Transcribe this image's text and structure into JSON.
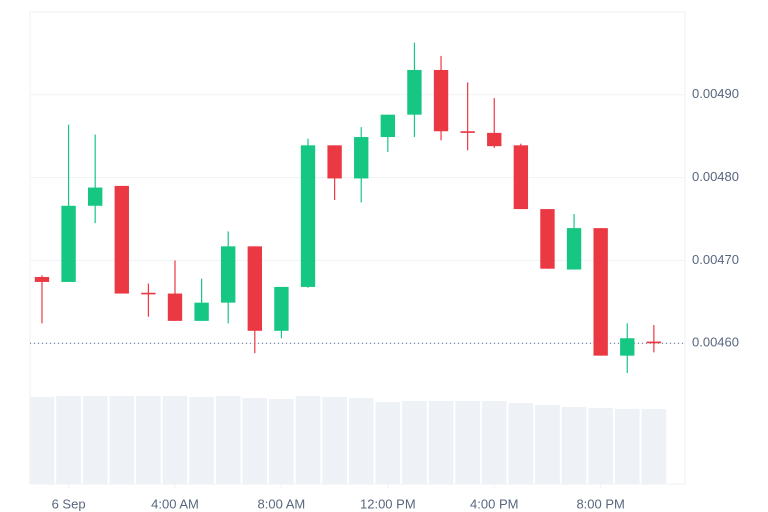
{
  "chart_data": {
    "type": "candlestick",
    "x": [
      0,
      1,
      2,
      3,
      4,
      5,
      6,
      7,
      8,
      9,
      10,
      11,
      12,
      13,
      14,
      15,
      16,
      17,
      18,
      19,
      20,
      21,
      22,
      23
    ],
    "xlim": [
      -0.45,
      24.17
    ],
    "xticks": [
      {
        "value": 1,
        "label": "6 Sep"
      },
      {
        "value": 5,
        "label": "4:00 AM"
      },
      {
        "value": 9,
        "label": "8:00 AM"
      },
      {
        "value": 13,
        "label": "12:00 PM"
      },
      {
        "value": 17,
        "label": "4:00 PM"
      },
      {
        "value": 21,
        "label": "8:00 PM"
      }
    ],
    "open": [
      0.00468,
      0.004674,
      0.004766,
      0.00479,
      0.004661,
      0.00466,
      0.004627,
      0.004649,
      0.004717,
      0.004615,
      0.004668,
      0.004839,
      0.004799,
      0.004849,
      0.004876,
      0.00493,
      0.004856,
      0.004854,
      0.004839,
      0.004762,
      0.004689,
      0.004739,
      0.004585,
      0.004602
    ],
    "high": [
      0.004682,
      0.004864,
      0.004852,
      0.00479,
      0.004672,
      0.0047,
      0.004678,
      0.004735,
      0.004717,
      0.004668,
      0.004847,
      0.004839,
      0.004861,
      0.004876,
      0.004963,
      0.004947,
      0.004915,
      0.004896,
      0.004841,
      0.004762,
      0.004756,
      0.004739,
      0.004624,
      0.004622
    ],
    "low": [
      0.004624,
      0.004674,
      0.004745,
      0.00466,
      0.004632,
      0.004627,
      0.004627,
      0.004624,
      0.004588,
      0.004606,
      0.004667,
      0.004773,
      0.00477,
      0.004831,
      0.004849,
      0.004845,
      0.004833,
      0.004836,
      0.004762,
      0.00469,
      0.004689,
      0.004585,
      0.004564,
      0.004589
    ],
    "close": [
      0.004674,
      0.004766,
      0.004788,
      0.00466,
      0.004659,
      0.004627,
      0.004649,
      0.004717,
      0.004615,
      0.004668,
      0.004839,
      0.004799,
      0.004849,
      0.004876,
      0.00493,
      0.004856,
      0.004854,
      0.004838,
      0.004762,
      0.00469,
      0.004739,
      0.004585,
      0.004606,
      0.0046
    ],
    "volume": [
      87,
      88,
      88,
      88,
      88,
      88,
      87,
      88,
      86,
      85,
      88,
      87,
      86,
      82,
      83,
      83,
      83,
      83,
      81,
      79,
      77,
      76,
      75,
      75
    ],
    "up_color": "#16c784",
    "down_color": "#ea3943",
    "volume_color": "#eef1f5",
    "ylim": [
      0.00443,
      0.005
    ],
    "yticks": [
      {
        "value": 0.0046,
        "label": "0.00460"
      },
      {
        "value": 0.0047,
        "label": "0.00470"
      },
      {
        "value": 0.0048,
        "label": "0.00480"
      },
      {
        "value": 0.0049,
        "label": "0.00490"
      }
    ],
    "grid": true
  }
}
